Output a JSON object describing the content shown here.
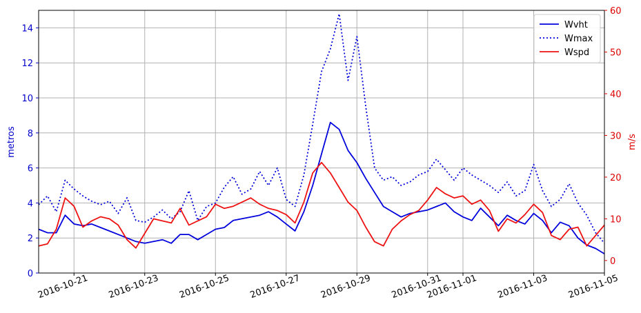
{
  "chart_data": {
    "type": "line",
    "title": "",
    "xlabel": "",
    "ylabel_left": "metros",
    "ylabel_right": "m/s",
    "ylim_left": [
      0,
      15
    ],
    "ylim_right": [
      -3,
      60
    ],
    "xlim": [
      "2016-10-20",
      "2016-11-05"
    ],
    "grid": true,
    "legend_position": "top-right",
    "x_tick_labels": [
      "2016-10-21",
      "2016-10-23",
      "2016-10-25",
      "2016-10-27",
      "2016-10-29",
      "2016-10-31",
      "2016-11-01",
      "2016-11-03",
      "2016-11-05"
    ],
    "x_tick_dates": [
      "2016-10-21",
      "2016-10-23",
      "2016-10-25",
      "2016-10-27",
      "2016-10-29",
      "2016-10-31",
      "2016-11-01",
      "2016-11-03",
      "2016-11-05"
    ],
    "x_tick_positions": [
      1.0,
      3.0,
      5.0,
      7.0,
      9.0,
      11.0,
      12.0,
      14.0,
      16.0
    ],
    "y_left_ticks": [
      0,
      2,
      4,
      6,
      8,
      10,
      12,
      14
    ],
    "y_right_ticks": [
      0,
      10,
      20,
      30,
      40,
      50,
      60
    ],
    "colors": {
      "Wvht": "#0000dd",
      "Wmax": "#0000dd",
      "Wspd": "#ee1111",
      "left_axis": "#0000cc",
      "right_axis": "#dd0000"
    },
    "series": [
      {
        "name": "Wvht",
        "axis": "left",
        "style": "solid",
        "x": [
          "2016-10-20",
          "2016-10-20 06:00",
          "2016-10-20 12:00",
          "2016-10-20 18:00",
          "2016-10-21",
          "2016-10-21 06:00",
          "2016-10-21 12:00",
          "2016-10-21 18:00",
          "2016-10-22",
          "2016-10-22 06:00",
          "2016-10-22 12:00",
          "2016-10-22 18:00",
          "2016-10-23",
          "2016-10-23 06:00",
          "2016-10-23 12:00",
          "2016-10-23 18:00",
          "2016-10-24",
          "2016-10-24 06:00",
          "2016-10-24 12:00",
          "2016-10-24 18:00",
          "2016-10-25",
          "2016-10-25 06:00",
          "2016-10-25 12:00",
          "2016-10-25 18:00",
          "2016-10-26",
          "2016-10-26 06:00",
          "2016-10-26 12:00",
          "2016-10-26 18:00",
          "2016-10-27",
          "2016-10-27 06:00",
          "2016-10-27 12:00",
          "2016-10-27 18:00",
          "2016-10-28",
          "2016-10-28 06:00",
          "2016-10-28 12:00",
          "2016-10-28 18:00",
          "2016-10-29",
          "2016-10-29 06:00",
          "2016-10-29 12:00",
          "2016-10-29 18:00",
          "2016-10-30",
          "2016-10-30 06:00",
          "2016-10-30 12:00",
          "2016-10-30 18:00",
          "2016-10-31",
          "2016-10-31 06:00",
          "2016-10-31 12:00",
          "2016-10-31 18:00",
          "2016-11-01",
          "2016-11-01 06:00",
          "2016-11-01 12:00",
          "2016-11-01 18:00",
          "2016-11-02",
          "2016-11-02 06:00",
          "2016-11-02 12:00",
          "2016-11-02 18:00",
          "2016-11-03",
          "2016-11-03 06:00",
          "2016-11-03 12:00",
          "2016-11-03 18:00",
          "2016-11-04",
          "2016-11-04 06:00",
          "2016-11-04 12:00",
          "2016-11-04 18:00",
          "2016-11-05"
        ],
        "values": [
          2.5,
          2.3,
          2.3,
          3.3,
          2.8,
          2.7,
          2.8,
          2.6,
          2.4,
          2.2,
          2.0,
          1.8,
          1.7,
          1.8,
          1.9,
          1.7,
          2.2,
          2.2,
          1.9,
          2.2,
          2.5,
          2.6,
          3.0,
          3.1,
          3.2,
          3.3,
          3.5,
          3.2,
          2.8,
          2.4,
          3.5,
          5.0,
          6.8,
          8.6,
          8.2,
          7.0,
          6.3,
          5.4,
          4.6,
          3.8,
          3.5,
          3.2,
          3.4,
          3.5,
          3.6,
          3.8,
          4.0,
          3.5,
          3.2,
          3.0,
          3.7,
          3.2,
          2.7,
          3.3,
          3.0,
          2.8,
          3.4,
          3.0,
          2.3,
          2.9,
          2.7,
          2.0,
          1.6,
          1.4,
          1.1
        ]
      },
      {
        "name": "Wmax",
        "axis": "left",
        "style": "dotted",
        "x": [
          "2016-10-20",
          "2016-10-20 06:00",
          "2016-10-20 12:00",
          "2016-10-20 18:00",
          "2016-10-21",
          "2016-10-21 06:00",
          "2016-10-21 12:00",
          "2016-10-21 18:00",
          "2016-10-22",
          "2016-10-22 06:00",
          "2016-10-22 12:00",
          "2016-10-22 18:00",
          "2016-10-23",
          "2016-10-23 06:00",
          "2016-10-23 12:00",
          "2016-10-23 18:00",
          "2016-10-24",
          "2016-10-24 06:00",
          "2016-10-24 12:00",
          "2016-10-24 18:00",
          "2016-10-25",
          "2016-10-25 06:00",
          "2016-10-25 12:00",
          "2016-10-25 18:00",
          "2016-10-26",
          "2016-10-26 06:00",
          "2016-10-26 12:00",
          "2016-10-26 18:00",
          "2016-10-27",
          "2016-10-27 06:00",
          "2016-10-27 12:00",
          "2016-10-27 18:00",
          "2016-10-28",
          "2016-10-28 06:00",
          "2016-10-28 12:00",
          "2016-10-28 18:00",
          "2016-10-29",
          "2016-10-29 06:00",
          "2016-10-29 12:00",
          "2016-10-29 18:00",
          "2016-10-30",
          "2016-10-30 06:00",
          "2016-10-30 12:00",
          "2016-10-30 18:00",
          "2016-10-31",
          "2016-10-31 06:00",
          "2016-10-31 12:00",
          "2016-10-31 18:00",
          "2016-11-01",
          "2016-11-01 06:00",
          "2016-11-01 12:00",
          "2016-11-01 18:00",
          "2016-11-02",
          "2016-11-02 06:00",
          "2016-11-02 12:00",
          "2016-11-02 18:00",
          "2016-11-03",
          "2016-11-03 06:00",
          "2016-11-03 12:00",
          "2016-11-03 18:00",
          "2016-11-04",
          "2016-11-04 06:00",
          "2016-11-04 12:00",
          "2016-11-04 18:00",
          "2016-11-05"
        ],
        "values": [
          3.9,
          4.4,
          3.5,
          5.3,
          4.8,
          4.4,
          4.1,
          3.9,
          4.1,
          3.4,
          4.3,
          3.0,
          2.9,
          3.2,
          3.6,
          3.1,
          3.5,
          4.7,
          3.0,
          3.8,
          4.0,
          4.9,
          5.5,
          4.5,
          4.8,
          5.8,
          5.0,
          6.0,
          4.2,
          3.8,
          5.6,
          8.5,
          11.5,
          12.8,
          14.8,
          11.0,
          13.5,
          9.5,
          6.0,
          5.3,
          5.5,
          5.0,
          5.2,
          5.6,
          5.8,
          6.5,
          5.9,
          5.3,
          6.0,
          5.6,
          5.3,
          5.0,
          4.6,
          5.2,
          4.4,
          4.7,
          6.2,
          4.7,
          3.8,
          4.2,
          5.1,
          4.0,
          3.3,
          2.3,
          1.7
        ]
      },
      {
        "name": "Wspd",
        "axis": "right",
        "style": "solid",
        "x": [
          "2016-10-20",
          "2016-10-20 06:00",
          "2016-10-20 12:00",
          "2016-10-20 18:00",
          "2016-10-21",
          "2016-10-21 06:00",
          "2016-10-21 12:00",
          "2016-10-21 18:00",
          "2016-10-22",
          "2016-10-22 06:00",
          "2016-10-22 12:00",
          "2016-10-22 18:00",
          "2016-10-23",
          "2016-10-23 06:00",
          "2016-10-23 12:00",
          "2016-10-23 18:00",
          "2016-10-24",
          "2016-10-24 06:00",
          "2016-10-24 12:00",
          "2016-10-24 18:00",
          "2016-10-25",
          "2016-10-25 06:00",
          "2016-10-25 12:00",
          "2016-10-25 18:00",
          "2016-10-26",
          "2016-10-26 06:00",
          "2016-10-26 12:00",
          "2016-10-26 18:00",
          "2016-10-27",
          "2016-10-27 06:00",
          "2016-10-27 12:00",
          "2016-10-27 18:00",
          "2016-10-28",
          "2016-10-28 06:00",
          "2016-10-28 12:00",
          "2016-10-28 18:00",
          "2016-10-29",
          "2016-10-29 06:00",
          "2016-10-29 12:00",
          "2016-10-29 18:00",
          "2016-10-30",
          "2016-10-30 06:00",
          "2016-10-30 12:00",
          "2016-10-30 18:00",
          "2016-10-31",
          "2016-10-31 06:00",
          "2016-10-31 12:00",
          "2016-10-31 18:00",
          "2016-11-01",
          "2016-11-01 06:00",
          "2016-11-01 12:00",
          "2016-11-01 18:00",
          "2016-11-02",
          "2016-11-02 06:00",
          "2016-11-02 12:00",
          "2016-11-02 18:00",
          "2016-11-03",
          "2016-11-03 06:00",
          "2016-11-03 12:00",
          "2016-11-03 18:00",
          "2016-11-04",
          "2016-11-04 06:00",
          "2016-11-04 12:00",
          "2016-11-04 18:00",
          "2016-11-05"
        ],
        "values": [
          3.5,
          4.0,
          7.5,
          15.0,
          13.0,
          8.0,
          9.5,
          10.5,
          10.0,
          8.5,
          5.0,
          3.0,
          6.5,
          10.0,
          9.5,
          9.0,
          12.5,
          8.5,
          9.5,
          10.5,
          13.5,
          12.5,
          13.0,
          14.0,
          15.0,
          13.5,
          12.5,
          12.0,
          11.0,
          9.0,
          14.0,
          21.0,
          23.5,
          21.0,
          17.5,
          14.0,
          12.0,
          8.0,
          4.5,
          3.5,
          7.5,
          9.5,
          11.0,
          12.0,
          14.5,
          17.5,
          16.0,
          15.0,
          15.5,
          13.5,
          14.5,
          12.0,
          7.0,
          10.0,
          9.0,
          11.0,
          13.5,
          11.5,
          6.0,
          5.0,
          7.5,
          8.0,
          3.5,
          6.0,
          8.5
        ]
      }
    ]
  }
}
